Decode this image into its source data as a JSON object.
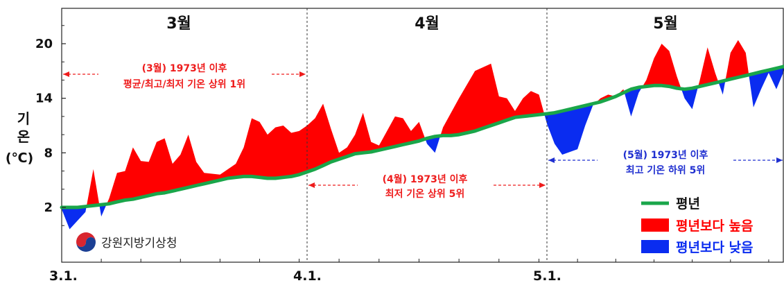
{
  "chart_data": {
    "type": "area",
    "ylabel_lines": [
      "기",
      "온"
    ],
    "unit": "(℃)",
    "y_ticks": [
      2,
      8,
      14,
      20
    ],
    "ylim": [
      -3,
      25
    ],
    "x_ticks": [
      "3.1.",
      "4.1.",
      "5.1."
    ],
    "month_headers": [
      "3월",
      "4월",
      "5월"
    ],
    "colors": {
      "normal": "#1aa64a",
      "above": "#ff0000",
      "below": "#0a2cf0",
      "annotation_red": "#ee1c1c",
      "annotation_blue": "#1f2fd0"
    },
    "annotations": [
      {
        "month": "3월",
        "color": "red",
        "lines": [
          "(3월) 1973년 이후",
          "평균/최고/최저 기온 상위 1위"
        ]
      },
      {
        "month": "4월",
        "color": "red",
        "lines": [
          "(4월) 1973년 이후",
          "최저 기온 상위 5위"
        ]
      },
      {
        "month": "5월",
        "color": "blue",
        "lines": [
          "(5월) 1973년 이후",
          "최고 기온 하위 5위"
        ]
      }
    ],
    "legend": [
      {
        "key": "normal",
        "label": "평년"
      },
      {
        "key": "above",
        "label": "평년보다 높음"
      },
      {
        "key": "below",
        "label": "평년보다 낮음"
      }
    ],
    "legend_position": "bottom-right",
    "agency_logo_text": "강원지방기상청",
    "x_day_index_ticks": [
      0,
      31,
      61,
      92
    ],
    "series": [
      {
        "key": "normal",
        "name": "평년",
        "values": [
          2.0,
          2.0,
          2.0,
          2.1,
          2.2,
          2.3,
          2.4,
          2.6,
          2.8,
          2.9,
          3.1,
          3.3,
          3.5,
          3.6,
          3.8,
          4.0,
          4.2,
          4.4,
          4.6,
          4.8,
          5.0,
          5.2,
          5.3,
          5.4,
          5.4,
          5.3,
          5.2,
          5.2,
          5.3,
          5.4,
          5.6,
          5.9,
          6.2,
          6.6,
          7.0,
          7.3,
          7.6,
          7.9,
          8.0,
          8.1,
          8.3,
          8.5,
          8.7,
          8.9,
          9.1,
          9.3,
          9.6,
          9.8,
          9.9,
          9.9,
          10.0,
          10.2,
          10.4,
          10.7,
          11.0,
          11.3,
          11.6,
          11.9,
          12.0,
          12.1,
          12.2,
          12.3,
          12.4,
          12.6,
          12.8,
          13.0,
          13.2,
          13.4,
          13.6,
          13.9,
          14.2,
          14.6,
          15.0,
          15.2,
          15.3,
          15.4,
          15.4,
          15.3,
          15.1,
          15.0,
          15.1,
          15.3,
          15.5,
          15.7,
          15.9,
          16.1,
          16.3,
          16.5,
          16.7,
          16.9,
          17.1,
          17.3,
          17.5,
          17.7,
          17.8,
          17.8,
          17.8,
          17.9,
          18.0,
          18.2,
          18.4,
          18.6
        ],
        "x_days": [
          0,
          1,
          2,
          3,
          4,
          5,
          6,
          7,
          8,
          9,
          10,
          11,
          12,
          13,
          14,
          15,
          16,
          17,
          18,
          19,
          20,
          21,
          22,
          23,
          24,
          25,
          26,
          27,
          28,
          29,
          30,
          31,
          32,
          33,
          34,
          35,
          36,
          37,
          38,
          39,
          40,
          41,
          42,
          43,
          44,
          45,
          46,
          47,
          48,
          49,
          50,
          51,
          52,
          53,
          54,
          55,
          56,
          57,
          58,
          59,
          60,
          61,
          62,
          63,
          64,
          65,
          66,
          67,
          68,
          69,
          70,
          71,
          72,
          73,
          74,
          75,
          76,
          77,
          78,
          79,
          80,
          81,
          82,
          83,
          84,
          85,
          86,
          87,
          88,
          89,
          90,
          91,
          92,
          93,
          94,
          95,
          96,
          97,
          98,
          99,
          100,
          101
        ]
      },
      {
        "key": "observed",
        "name": "관측",
        "values": [
          1.8,
          -0.4,
          1.5,
          6.2,
          1.0,
          3.0,
          5.8,
          6.0,
          8.6,
          7.1,
          7.0,
          9.2,
          9.6,
          6.8,
          7.8,
          10.0,
          7.0,
          5.8,
          5.6,
          6.8,
          8.6,
          11.8,
          11.4,
          10.0,
          10.8,
          11.0,
          10.2,
          10.4,
          11.0,
          11.8,
          13.4,
          10.6,
          8.0,
          8.6,
          10.0,
          12.4,
          9.2,
          8.8,
          12.0,
          11.8,
          10.4,
          11.4,
          9.0,
          8.0,
          10.8,
          14.0,
          17.0,
          17.8,
          14.2,
          14.0,
          12.6,
          14.0,
          14.8,
          14.4,
          11.2,
          9.0,
          7.8,
          8.4,
          11.0,
          13.2,
          14.0,
          14.4,
          14.2,
          15.0,
          12.0,
          14.6,
          16.0,
          18.4,
          20.0,
          19.2,
          16.4,
          14.0,
          12.8,
          16.0,
          19.6,
          16.8,
          14.4,
          19.0,
          20.4,
          19.0,
          13.0,
          15.0,
          16.8,
          15.0,
          17.0,
          17.2,
          18.0,
          17.6,
          16.0,
          15.4,
          16.0,
          18.4
        ],
        "x_days": [
          0,
          1,
          3,
          4,
          5,
          6,
          7,
          8,
          9,
          10,
          11,
          12,
          13,
          14,
          15,
          16,
          17,
          18,
          20,
          22,
          23,
          24,
          25,
          26,
          27,
          28,
          29,
          30,
          31,
          32,
          33,
          34,
          35,
          36,
          37,
          38,
          39,
          40,
          42,
          43,
          44,
          45,
          46,
          47,
          48,
          50,
          52,
          54,
          55,
          56,
          57,
          58,
          59,
          60,
          61,
          62,
          63,
          65,
          66,
          67,
          68,
          69,
          70,
          71,
          72,
          73,
          74,
          75,
          76,
          77,
          78,
          79,
          80,
          81,
          82,
          83,
          84,
          85,
          86,
          87,
          88,
          89,
          90,
          91,
          92,
          93,
          94,
          95,
          96,
          97,
          98,
          101
        ]
      }
    ]
  }
}
